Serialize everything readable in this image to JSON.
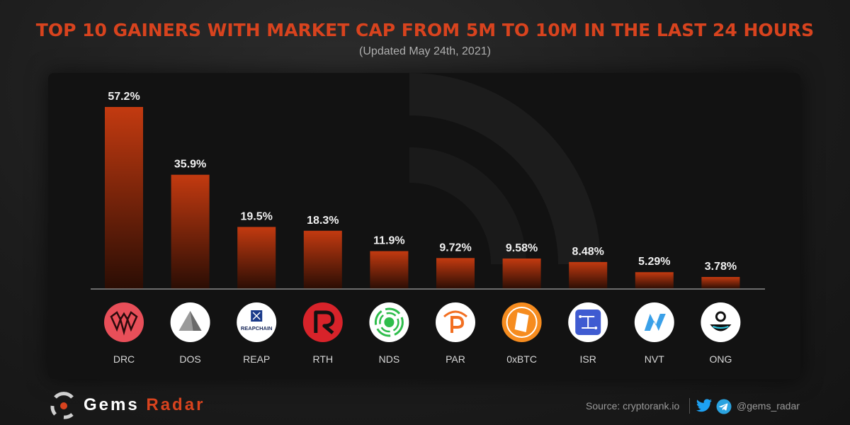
{
  "header": {
    "title": "TOP 10 GAINERS WITH MARKET CAP FROM 5M TO 10M IN THE LAST 24 HOURS",
    "subtitle": "(Updated May 24th, 2021)"
  },
  "chart_data": {
    "type": "bar",
    "categories": [
      "DRC",
      "DOS",
      "REAP",
      "RTH",
      "NDS",
      "PAR",
      "0xBTC",
      "ISR",
      "NVT",
      "ONG"
    ],
    "values": [
      57.2,
      35.9,
      19.5,
      18.3,
      11.9,
      9.72,
      9.58,
      8.48,
      5.29,
      3.78
    ],
    "value_labels": [
      "57.2%",
      "35.9%",
      "19.5%",
      "18.3%",
      "11.9%",
      "9.72%",
      "9.58%",
      "8.48%",
      "5.29%",
      "3.78%"
    ],
    "ylim": [
      0,
      57.2
    ],
    "grid": false,
    "bar_color": "#c33a10",
    "logo_text": [
      "",
      "",
      "REAPCHAIN",
      "",
      "",
      "",
      "",
      "",
      "",
      ""
    ]
  },
  "footer": {
    "brand_part1": "Gems",
    "brand_part2": "Radar",
    "source": "Source: cryptorank.io",
    "handle": "@gems_radar",
    "accent_color": "#d8431e"
  }
}
